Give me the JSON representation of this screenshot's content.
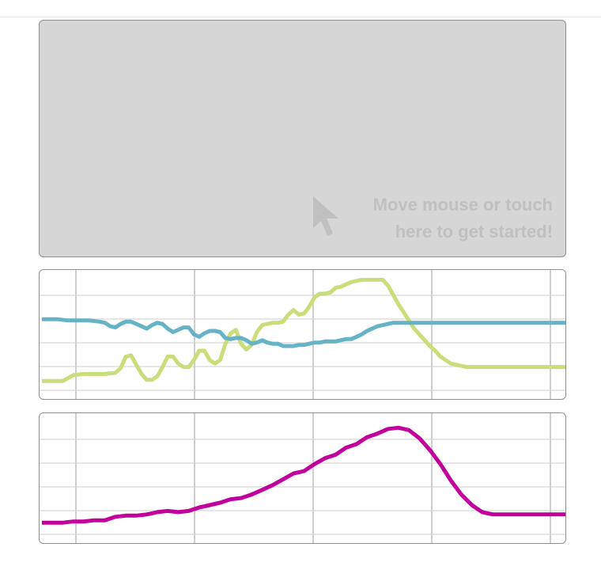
{
  "input_area": {
    "hint_line1": "Move mouse or touch",
    "hint_line2": "here to get started!",
    "icon": "cursor-arrow-icon",
    "background": "#d6d6d6",
    "hint_color": "#c0c0c0"
  },
  "colors": {
    "x_series": "#c9de7a",
    "y_series": "#66b3c7",
    "speed_series": "#c2009c",
    "grid": "#e6e6e6",
    "grid_vertical": "#cfcfcf"
  },
  "chart_data": [
    {
      "type": "line",
      "ylim": [
        0,
        100
      ],
      "xlim": [
        0,
        100
      ],
      "grid": true,
      "series": [
        {
          "color": "#c9de7a",
          "x": [
            0,
            4,
            6,
            8,
            10,
            12,
            14,
            15,
            16,
            17,
            18,
            19,
            20,
            21,
            22,
            23,
            24,
            25,
            26,
            27,
            28,
            29,
            30,
            31,
            32,
            33,
            34,
            35,
            36,
            37,
            38,
            39,
            40,
            41,
            42,
            43,
            44,
            45,
            46,
            47,
            48,
            49,
            50,
            51,
            52,
            53,
            54,
            55,
            56,
            57,
            58,
            59,
            60,
            61,
            62,
            63,
            64,
            65,
            66,
            67,
            68,
            69,
            70,
            71,
            72,
            73,
            74,
            75,
            76,
            77,
            78,
            79,
            80,
            81,
            82,
            84,
            86,
            88,
            90,
            92,
            94,
            96,
            98,
            100
          ],
          "values": [
            8,
            8,
            13,
            14,
            14,
            14,
            15,
            19,
            29,
            30,
            22,
            14,
            9,
            9,
            12,
            20,
            29,
            29,
            23,
            20,
            20,
            26,
            34,
            34,
            26,
            23,
            26,
            40,
            49,
            52,
            40,
            35,
            39,
            50,
            56,
            57,
            58,
            58,
            59,
            65,
            69,
            65,
            66,
            72,
            80,
            83,
            83,
            84,
            88,
            89,
            91,
            93,
            94,
            95,
            95,
            95,
            95,
            95,
            90,
            82,
            74,
            67,
            60,
            53,
            48,
            43,
            38,
            34,
            29,
            26,
            23,
            22,
            21,
            20,
            20,
            20,
            20,
            20,
            20,
            20,
            20,
            20,
            20,
            20
          ]
        },
        {
          "color": "#66b3c7",
          "x": [
            0,
            3,
            5,
            7,
            9,
            11,
            12,
            13,
            14,
            15,
            16,
            17,
            18,
            19,
            20,
            21,
            22,
            23,
            24,
            25,
            26,
            27,
            28,
            29,
            30,
            31,
            32,
            33,
            34,
            35,
            36,
            37,
            38,
            39,
            40,
            41,
            42,
            43,
            44,
            45,
            46,
            47,
            48,
            49,
            50,
            51,
            52,
            53,
            54,
            55,
            56,
            57,
            58,
            59,
            60,
            61,
            62,
            63,
            64,
            65,
            66,
            67,
            68,
            69,
            70,
            71,
            72,
            73,
            74,
            75,
            76,
            77,
            78,
            80,
            84,
            88,
            92,
            96,
            100
          ],
          "values": [
            61,
            61,
            60,
            60,
            60,
            59,
            58,
            55,
            54,
            57,
            59,
            59,
            57,
            55,
            53,
            56,
            58,
            57,
            53,
            50,
            52,
            54,
            54,
            48,
            46,
            49,
            51,
            51,
            50,
            45,
            44,
            45,
            45,
            43,
            40,
            41,
            43,
            41,
            40,
            40,
            38,
            38,
            38,
            39,
            39,
            40,
            41,
            41,
            42,
            42,
            42,
            43,
            44,
            44,
            46,
            48,
            51,
            53,
            55,
            56,
            57,
            58,
            58,
            58,
            58,
            58,
            58,
            58,
            58,
            58,
            58,
            58,
            58,
            58,
            58,
            58,
            58,
            58,
            58
          ]
        }
      ]
    },
    {
      "type": "line",
      "ylim": [
        0,
        100
      ],
      "xlim": [
        0,
        100
      ],
      "grid": true,
      "series": [
        {
          "color": "#c2009c",
          "x": [
            0,
            4,
            6,
            8,
            10,
            12,
            14,
            16,
            18,
            20,
            22,
            24,
            26,
            28,
            30,
            32,
            34,
            36,
            38,
            40,
            42,
            44,
            46,
            48,
            50,
            52,
            54,
            56,
            58,
            60,
            62,
            64,
            66,
            68,
            70,
            72,
            74,
            76,
            78,
            80,
            82,
            84,
            86,
            88,
            90,
            92,
            94,
            96,
            98,
            100
          ],
          "values": [
            10,
            10,
            11,
            11,
            12,
            12,
            15,
            16,
            16,
            17,
            19,
            20,
            19,
            20,
            23,
            25,
            27,
            30,
            31,
            34,
            38,
            42,
            47,
            52,
            54,
            60,
            65,
            68,
            74,
            77,
            83,
            86,
            90,
            91,
            89,
            82,
            72,
            60,
            46,
            34,
            25,
            19,
            17,
            17,
            17,
            17,
            17,
            17,
            17,
            17
          ]
        }
      ]
    }
  ]
}
